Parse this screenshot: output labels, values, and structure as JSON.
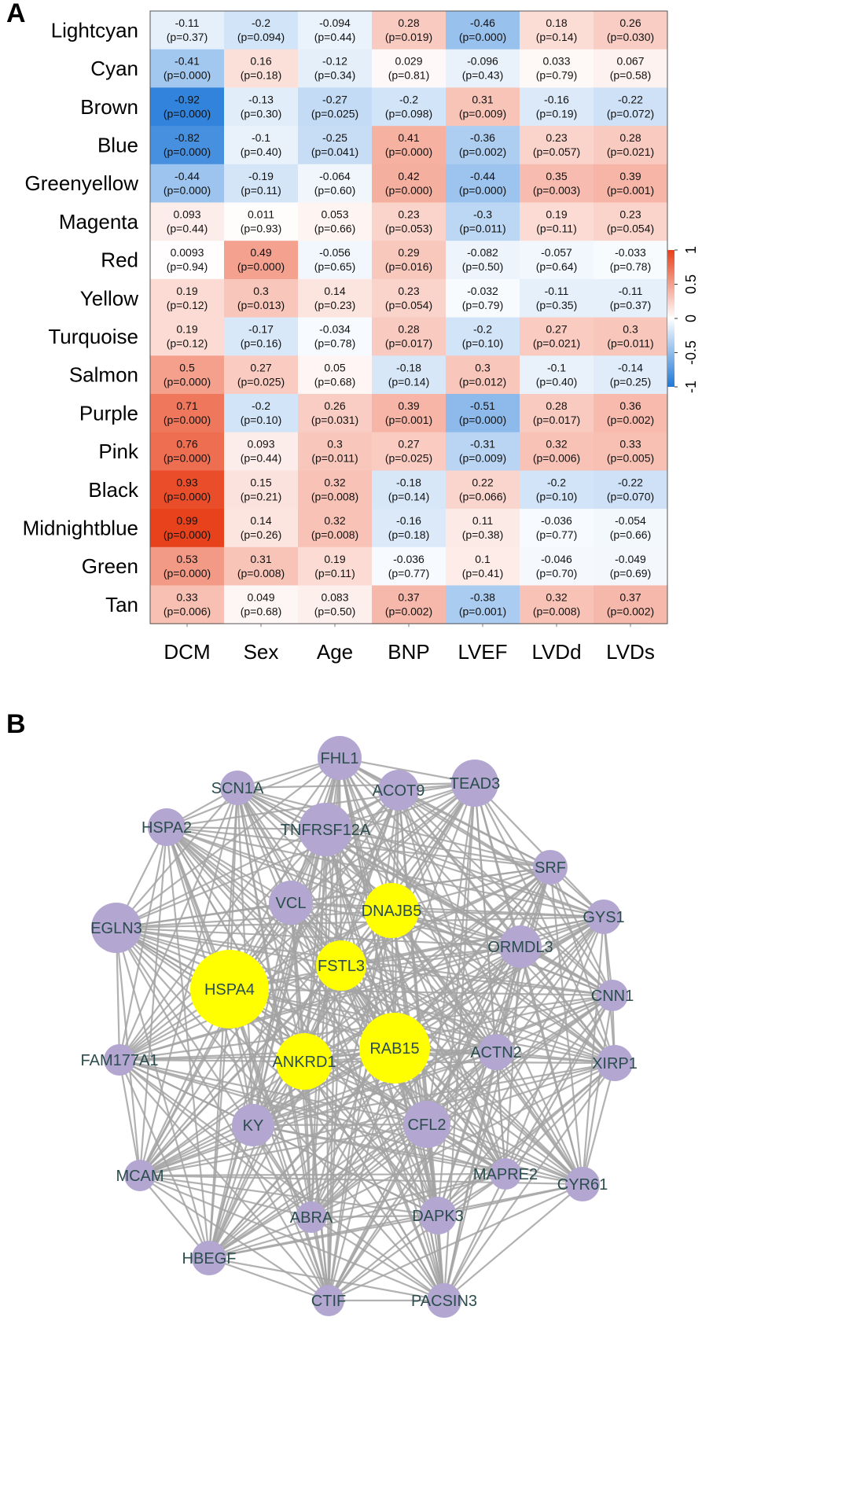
{
  "panel_a_label": "A",
  "panel_b_label": "B",
  "chart_data": {
    "type": "heatmap",
    "rows": [
      "Lightcyan",
      "Cyan",
      "Brown",
      "Blue",
      "Greenyellow",
      "Magenta",
      "Red",
      "Yellow",
      "Turquoise",
      "Salmon",
      "Purple",
      "Pink",
      "Black",
      "Midnightblue",
      "Green",
      "Tan"
    ],
    "columns": [
      "DCM",
      "Sex",
      "Age",
      "BNP",
      "LVEF",
      "LVDd",
      "LVDs"
    ],
    "values": [
      [
        -0.11,
        -0.2,
        -0.094,
        0.28,
        -0.46,
        0.18,
        0.26
      ],
      [
        -0.41,
        0.16,
        -0.12,
        0.029,
        -0.096,
        0.033,
        0.067
      ],
      [
        -0.92,
        -0.13,
        -0.27,
        -0.2,
        0.31,
        -0.16,
        -0.22
      ],
      [
        -0.82,
        -0.1,
        -0.25,
        0.41,
        -0.36,
        0.23,
        0.28
      ],
      [
        -0.44,
        -0.19,
        -0.064,
        0.42,
        -0.44,
        0.35,
        0.39
      ],
      [
        0.093,
        0.011,
        0.053,
        0.23,
        -0.3,
        0.19,
        0.23
      ],
      [
        0.0093,
        0.49,
        -0.056,
        0.29,
        -0.082,
        -0.057,
        -0.033
      ],
      [
        0.19,
        0.3,
        0.14,
        0.23,
        -0.032,
        -0.11,
        -0.11
      ],
      [
        0.19,
        -0.17,
        -0.034,
        0.28,
        -0.2,
        0.27,
        0.3
      ],
      [
        0.5,
        0.27,
        0.05,
        -0.18,
        0.3,
        -0.1,
        -0.14
      ],
      [
        0.71,
        -0.2,
        0.26,
        0.39,
        -0.51,
        0.28,
        0.36
      ],
      [
        0.76,
        0.093,
        0.3,
        0.27,
        -0.31,
        0.32,
        0.33
      ],
      [
        0.93,
        0.15,
        0.32,
        -0.18,
        0.22,
        -0.2,
        -0.22
      ],
      [
        0.99,
        0.14,
        0.32,
        -0.16,
        0.11,
        -0.036,
        -0.054
      ],
      [
        0.53,
        0.31,
        0.19,
        -0.036,
        0.1,
        -0.046,
        -0.049
      ],
      [
        0.33,
        0.049,
        0.083,
        0.37,
        -0.38,
        0.32,
        0.37
      ]
    ],
    "value_labels": [
      [
        "-0.11",
        "-0.2",
        "-0.094",
        "0.28",
        "-0.46",
        "0.18",
        "0.26"
      ],
      [
        "-0.41",
        "0.16",
        "-0.12",
        "0.029",
        "-0.096",
        "0.033",
        "0.067"
      ],
      [
        "-0.92",
        "-0.13",
        "-0.27",
        "-0.2",
        "0.31",
        "-0.16",
        "-0.22"
      ],
      [
        "-0.82",
        "-0.1",
        "-0.25",
        "0.41",
        "-0.36",
        "0.23",
        "0.28"
      ],
      [
        "-0.44",
        "-0.19",
        "-0.064",
        "0.42",
        "-0.44",
        "0.35",
        "0.39"
      ],
      [
        "0.093",
        "0.011",
        "0.053",
        "0.23",
        "-0.3",
        "0.19",
        "0.23"
      ],
      [
        "0.0093",
        "0.49",
        "-0.056",
        "0.29",
        "-0.082",
        "-0.057",
        "-0.033"
      ],
      [
        "0.19",
        "0.3",
        "0.14",
        "0.23",
        "-0.032",
        "-0.11",
        "-0.11"
      ],
      [
        "0.19",
        "-0.17",
        "-0.034",
        "0.28",
        "-0.2",
        "0.27",
        "0.3"
      ],
      [
        "0.5",
        "0.27",
        "0.05",
        "-0.18",
        "0.3",
        "-0.1",
        "-0.14"
      ],
      [
        "0.71",
        "-0.2",
        "0.26",
        "0.39",
        "-0.51",
        "0.28",
        "0.36"
      ],
      [
        "0.76",
        "0.093",
        "0.3",
        "0.27",
        "-0.31",
        "0.32",
        "0.33"
      ],
      [
        "0.93",
        "0.15",
        "0.32",
        "-0.18",
        "0.22",
        "-0.2",
        "-0.22"
      ],
      [
        "0.99",
        "0.14",
        "0.32",
        "-0.16",
        "0.11",
        "-0.036",
        "-0.054"
      ],
      [
        "0.53",
        "0.31",
        "0.19",
        "-0.036",
        "0.1",
        "-0.046",
        "-0.049"
      ],
      [
        "0.33",
        "0.049",
        "0.083",
        "0.37",
        "-0.38",
        "0.32",
        "0.37"
      ]
    ],
    "p_values": [
      [
        "(p=0.37)",
        "(p=0.094)",
        "(p=0.44)",
        "(p=0.019)",
        "(p=0.000)",
        "(p=0.14)",
        "(p=0.030)"
      ],
      [
        "(p=0.000)",
        "(p=0.18)",
        "(p=0.34)",
        "(p=0.81)",
        "(p=0.43)",
        "(p=0.79)",
        "(p=0.58)"
      ],
      [
        "(p=0.000)",
        "(p=0.30)",
        "(p=0.025)",
        "(p=0.098)",
        "(p=0.009)",
        "(p=0.19)",
        "(p=0.072)"
      ],
      [
        "(p=0.000)",
        "(p=0.40)",
        "(p=0.041)",
        "(p=0.000)",
        "(p=0.002)",
        "(p=0.057)",
        "(p=0.021)"
      ],
      [
        "(p=0.000)",
        "(p=0.11)",
        "(p=0.60)",
        "(p=0.000)",
        "(p=0.000)",
        "(p=0.003)",
        "(p=0.001)"
      ],
      [
        "(p=0.44)",
        "(p=0.93)",
        "(p=0.66)",
        "(p=0.053)",
        "(p=0.011)",
        "(p=0.11)",
        "(p=0.054)"
      ],
      [
        "(p=0.94)",
        "(p=0.000)",
        "(p=0.65)",
        "(p=0.016)",
        "(p=0.50)",
        "(p=0.64)",
        "(p=0.78)"
      ],
      [
        "(p=0.12)",
        "(p=0.013)",
        "(p=0.23)",
        "(p=0.054)",
        "(p=0.79)",
        "(p=0.35)",
        "(p=0.37)"
      ],
      [
        "(p=0.12)",
        "(p=0.16)",
        "(p=0.78)",
        "(p=0.017)",
        "(p=0.10)",
        "(p=0.021)",
        "(p=0.011)"
      ],
      [
        "(p=0.000)",
        "(p=0.025)",
        "(p=0.68)",
        "(p=0.14)",
        "(p=0.012)",
        "(p=0.40)",
        "(p=0.25)"
      ],
      [
        "(p=0.000)",
        "(p=0.10)",
        "(p=0.031)",
        "(p=0.001)",
        "(p=0.000)",
        "(p=0.017)",
        "(p=0.002)"
      ],
      [
        "(p=0.000)",
        "(p=0.44)",
        "(p=0.011)",
        "(p=0.025)",
        "(p=0.009)",
        "(p=0.006)",
        "(p=0.005)"
      ],
      [
        "(p=0.000)",
        "(p=0.21)",
        "(p=0.008)",
        "(p=0.14)",
        "(p=0.066)",
        "(p=0.10)",
        "(p=0.070)"
      ],
      [
        "(p=0.000)",
        "(p=0.26)",
        "(p=0.008)",
        "(p=0.18)",
        "(p=0.38)",
        "(p=0.77)",
        "(p=0.66)"
      ],
      [
        "(p=0.000)",
        "(p=0.008)",
        "(p=0.11)",
        "(p=0.77)",
        "(p=0.41)",
        "(p=0.70)",
        "(p=0.69)"
      ],
      [
        "(p=0.006)",
        "(p=0.68)",
        "(p=0.50)",
        "(p=0.002)",
        "(p=0.001)",
        "(p=0.008)",
        "(p=0.002)"
      ]
    ],
    "color_scale": {
      "min": -1,
      "max": 1,
      "low_color": "#1f78d8",
      "mid_color": "#ffffff",
      "high_color": "#e8401a"
    },
    "colorbar_ticks": [
      "-1",
      "-0.5",
      "0",
      "0.5",
      "1"
    ],
    "colorbar_tick_values": [
      -1,
      -0.5,
      0,
      0.5,
      1
    ]
  },
  "network": {
    "edge_color": "#a3a3a3",
    "hub_color": "#ffff00",
    "node_color": "#b3a6d1",
    "label_color": "#2b4d4d",
    "nodes": [
      {
        "label": "FHL1",
        "hub": false
      },
      {
        "label": "SCN1A",
        "hub": false
      },
      {
        "label": "ACOT9",
        "hub": false
      },
      {
        "label": "TEAD3",
        "hub": false
      },
      {
        "label": "HSPA2",
        "hub": false
      },
      {
        "label": "TNFRSF12A",
        "hub": false
      },
      {
        "label": "SRF",
        "hub": false
      },
      {
        "label": "VCL",
        "hub": false
      },
      {
        "label": "DNAJB5",
        "hub": true
      },
      {
        "label": "GYS1",
        "hub": false
      },
      {
        "label": "EGLN3",
        "hub": false
      },
      {
        "label": "ORMDL3",
        "hub": false
      },
      {
        "label": "HSPA4",
        "hub": true
      },
      {
        "label": "FSTL3",
        "hub": true
      },
      {
        "label": "CNN1",
        "hub": false
      },
      {
        "label": "FAM177A1",
        "hub": false
      },
      {
        "label": "ANKRD1",
        "hub": true
      },
      {
        "label": "RAB15",
        "hub": true
      },
      {
        "label": "ACTN2",
        "hub": false
      },
      {
        "label": "XIRP1",
        "hub": false
      },
      {
        "label": "KY",
        "hub": false
      },
      {
        "label": "CFL2",
        "hub": false
      },
      {
        "label": "MCAM",
        "hub": false
      },
      {
        "label": "MAPRE2",
        "hub": false
      },
      {
        "label": "CYR61",
        "hub": false
      },
      {
        "label": "DAPK3",
        "hub": false
      },
      {
        "label": "ABRA",
        "hub": false
      },
      {
        "label": "HBEGF",
        "hub": false
      },
      {
        "label": "CTIF",
        "hub": false
      },
      {
        "label": "PACSIN3",
        "hub": false
      }
    ]
  }
}
